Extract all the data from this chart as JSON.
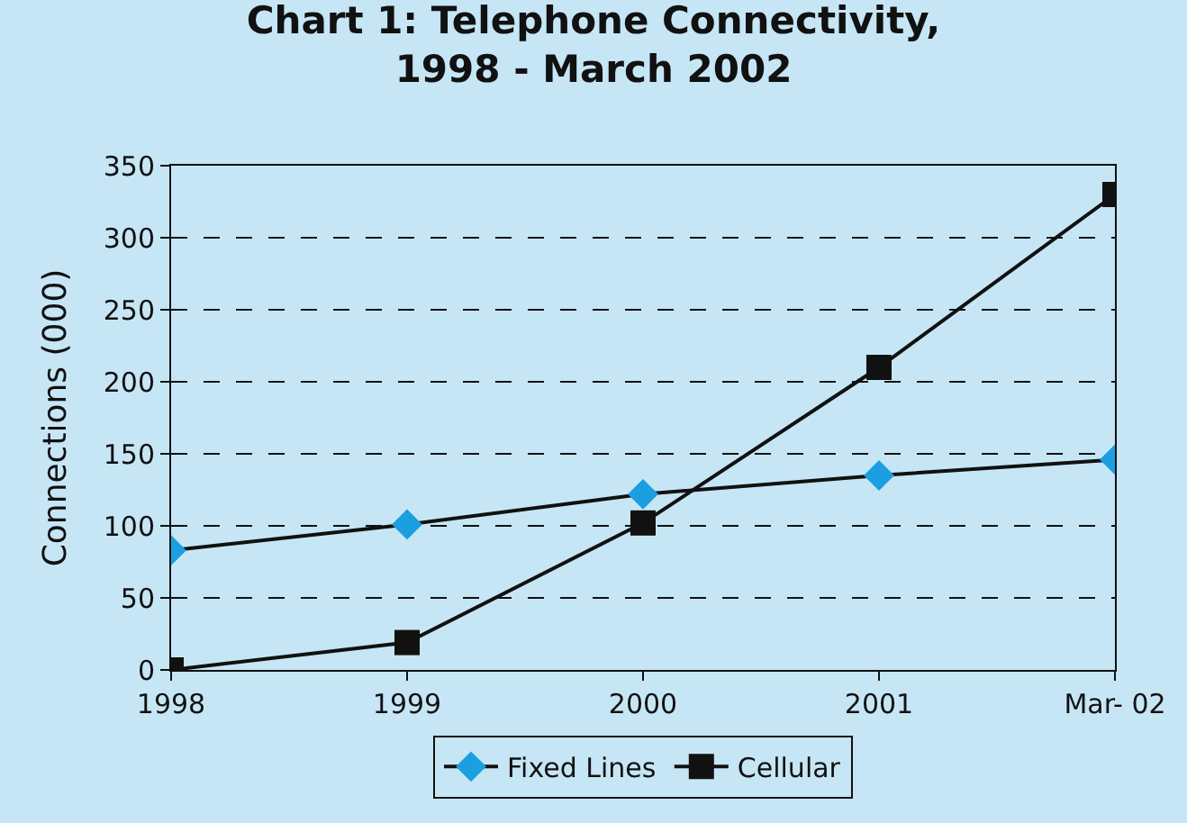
{
  "chart_data": {
    "type": "line",
    "title": "Chart 1: Telephone Connectivity,\n1998 - March 2002",
    "ylabel": "Connections (000)",
    "categories": [
      "1998",
      "1999",
      "2000",
      "2001",
      "Mar- 02"
    ],
    "series": [
      {
        "name": "Fixed Lines",
        "color": "#1b9fe0",
        "marker": "diamond",
        "values": [
          83,
          101,
          122,
          135,
          146
        ]
      },
      {
        "name": "Cellular",
        "color": "#111111",
        "marker": "square",
        "values": [
          0,
          19,
          102,
          210,
          330
        ]
      }
    ],
    "ylim": [
      0,
      350
    ],
    "yticks": [
      0,
      50,
      100,
      150,
      200,
      250,
      300,
      350
    ],
    "grid": "y",
    "legend": "bottom",
    "line_style": "solid"
  }
}
